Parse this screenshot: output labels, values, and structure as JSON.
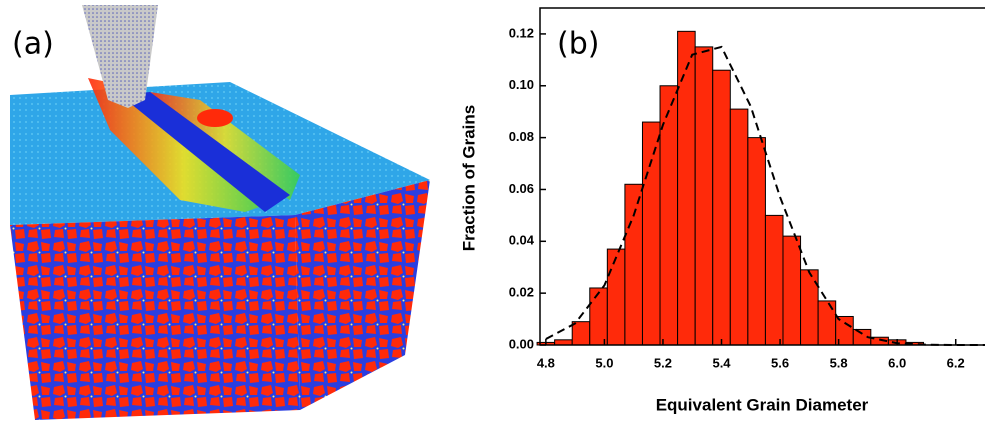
{
  "panel_a": {
    "label": "(a)"
  },
  "chart_data": {
    "type": "histogram",
    "panel_label": "(b)",
    "x_label": "Equivalent Grain Diameter",
    "y_label": "Fraction of Grains",
    "bins": [
      4.77,
      4.83,
      4.89,
      4.95,
      5.01,
      5.07,
      5.13,
      5.19,
      5.25,
      5.31,
      5.37,
      5.43,
      5.49,
      5.55,
      5.61,
      5.67,
      5.73,
      5.79,
      5.85,
      5.91,
      5.97,
      6.03,
      6.09
    ],
    "values": [
      0.001,
      0.002,
      0.009,
      0.022,
      0.037,
      0.062,
      0.086,
      0.1,
      0.121,
      0.115,
      0.106,
      0.091,
      0.08,
      0.05,
      0.042,
      0.029,
      0.017,
      0.011,
      0.006,
      0.003,
      0.002,
      0.001
    ],
    "color": "#ff2a0a",
    "fit": {
      "color": "#000000",
      "dashed": true,
      "x": [
        4.8,
        4.9,
        5.0,
        5.1,
        5.2,
        5.3,
        5.4,
        5.5,
        5.6,
        5.7,
        5.8,
        5.9,
        6.0,
        6.1,
        6.2,
        6.3
      ],
      "values": [
        0.0023,
        0.0083,
        0.023,
        0.05,
        0.085,
        0.112,
        0.115,
        0.092,
        0.057,
        0.028,
        0.01,
        0.003,
        0.0007,
        0.0001,
        0,
        0
      ]
    },
    "xlim": [
      4.78,
      6.3
    ],
    "ylim": [
      0,
      0.13
    ],
    "xticks": [
      4.8,
      {
        "value": 5.0,
        "label": "5.0"
      },
      5.2,
      5.4,
      5.6,
      5.8,
      {
        "value": 6.0,
        "label": "6.0"
      },
      6.2
    ],
    "yticks": [
      {
        "value": 0,
        "label": "0.00"
      },
      {
        "value": 0.02,
        "label": "0.02"
      },
      {
        "value": 0.04,
        "label": "0.04"
      },
      {
        "value": 0.06,
        "label": "0.06"
      },
      {
        "value": 0.08,
        "label": "0.08"
      },
      {
        "value": 0.1,
        "label": "0.10"
      },
      {
        "value": 0.12,
        "label": "0.12"
      }
    ]
  }
}
